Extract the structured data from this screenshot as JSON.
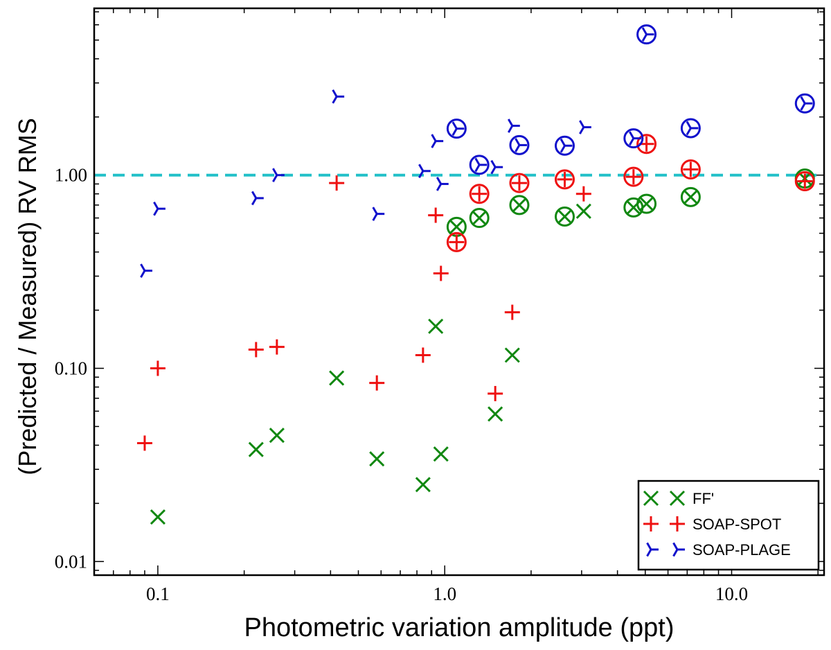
{
  "chart_data": {
    "type": "scatter",
    "title": "",
    "xlabel": "Photometric variation amplitude (ppt)",
    "ylabel": "(Predicted / Measured) RV RMS",
    "xscale": "log",
    "yscale": "log",
    "xlim": [
      0.06,
      21
    ],
    "ylim": [
      0.0085,
      7.3
    ],
    "xticks": [
      {
        "value": 0.1,
        "label": "0.1"
      },
      {
        "value": 1.0,
        "label": "1.0"
      },
      {
        "value": 10.0,
        "label": "10.0"
      }
    ],
    "yticks": [
      {
        "value": 0.01,
        "label": "0.01"
      },
      {
        "value": 0.1,
        "label": "0.10"
      },
      {
        "value": 1.0,
        "label": "1.00"
      }
    ],
    "reference_line": {
      "y": 1.0,
      "style": "dashed",
      "color": "#22c0c8"
    },
    "legend_position": "lower-right",
    "series": [
      {
        "name": "FF'",
        "marker": "x",
        "color": "#118811",
        "points": [
          {
            "x": 0.1,
            "y": 0.017,
            "circled": false
          },
          {
            "x": 0.22,
            "y": 0.038,
            "circled": false
          },
          {
            "x": 0.26,
            "y": 0.045,
            "circled": false
          },
          {
            "x": 0.42,
            "y": 0.089,
            "circled": false
          },
          {
            "x": 0.58,
            "y": 0.034,
            "circled": false
          },
          {
            "x": 0.84,
            "y": 0.025,
            "circled": false
          },
          {
            "x": 0.93,
            "y": 0.165,
            "circled": false
          },
          {
            "x": 0.97,
            "y": 0.036,
            "circled": false
          },
          {
            "x": 1.5,
            "y": 0.058,
            "circled": false
          },
          {
            "x": 1.72,
            "y": 0.117,
            "circled": false
          },
          {
            "x": 1.1,
            "y": 0.54,
            "circled": true
          },
          {
            "x": 1.32,
            "y": 0.6,
            "circled": true
          },
          {
            "x": 1.82,
            "y": 0.7,
            "circled": true
          },
          {
            "x": 2.62,
            "y": 0.61,
            "circled": true
          },
          {
            "x": 3.05,
            "y": 0.65,
            "circled": false
          },
          {
            "x": 4.55,
            "y": 0.68,
            "circled": true
          },
          {
            "x": 5.05,
            "y": 0.71,
            "circled": true
          },
          {
            "x": 7.2,
            "y": 0.77,
            "circled": true
          },
          {
            "x": 18.0,
            "y": 0.96,
            "circled": true
          }
        ]
      },
      {
        "name": "SOAP-SPOT",
        "marker": "+",
        "color": "#ee1111",
        "points": [
          {
            "x": 0.09,
            "y": 0.041,
            "circled": false
          },
          {
            "x": 0.1,
            "y": 0.1,
            "circled": false
          },
          {
            "x": 0.22,
            "y": 0.125,
            "circled": false
          },
          {
            "x": 0.26,
            "y": 0.129,
            "circled": false
          },
          {
            "x": 0.42,
            "y": 0.91,
            "circled": false
          },
          {
            "x": 0.58,
            "y": 0.084,
            "circled": false
          },
          {
            "x": 0.84,
            "y": 0.117,
            "circled": false
          },
          {
            "x": 0.93,
            "y": 0.62,
            "circled": false
          },
          {
            "x": 0.97,
            "y": 0.31,
            "circled": false
          },
          {
            "x": 1.5,
            "y": 0.074,
            "circled": false
          },
          {
            "x": 1.72,
            "y": 0.195,
            "circled": false
          },
          {
            "x": 1.1,
            "y": 0.45,
            "circled": true
          },
          {
            "x": 1.32,
            "y": 0.8,
            "circled": true
          },
          {
            "x": 1.82,
            "y": 0.91,
            "circled": true
          },
          {
            "x": 2.62,
            "y": 0.95,
            "circled": true
          },
          {
            "x": 3.05,
            "y": 0.8,
            "circled": false
          },
          {
            "x": 4.55,
            "y": 0.98,
            "circled": true
          },
          {
            "x": 5.05,
            "y": 1.45,
            "circled": true
          },
          {
            "x": 7.2,
            "y": 1.07,
            "circled": true
          },
          {
            "x": 18.0,
            "y": 0.93,
            "circled": true
          }
        ]
      },
      {
        "name": "SOAP-PLAGE",
        "marker": "tri_left",
        "color": "#1111cc",
        "points": [
          {
            "x": 0.09,
            "y": 0.32,
            "circled": false
          },
          {
            "x": 0.1,
            "y": 0.67,
            "circled": false
          },
          {
            "x": 0.22,
            "y": 0.76,
            "circled": false
          },
          {
            "x": 0.26,
            "y": 1.0,
            "circled": false
          },
          {
            "x": 0.42,
            "y": 2.55,
            "circled": false
          },
          {
            "x": 0.58,
            "y": 0.63,
            "circled": false
          },
          {
            "x": 0.84,
            "y": 1.05,
            "circled": false
          },
          {
            "x": 0.93,
            "y": 1.5,
            "circled": false
          },
          {
            "x": 0.97,
            "y": 0.9,
            "circled": false
          },
          {
            "x": 1.5,
            "y": 1.1,
            "circled": false
          },
          {
            "x": 1.72,
            "y": 1.8,
            "circled": false
          },
          {
            "x": 1.1,
            "y": 1.74,
            "circled": true
          },
          {
            "x": 1.32,
            "y": 1.13,
            "circled": true
          },
          {
            "x": 1.82,
            "y": 1.43,
            "circled": true
          },
          {
            "x": 2.62,
            "y": 1.42,
            "circled": true
          },
          {
            "x": 3.05,
            "y": 1.77,
            "circled": false
          },
          {
            "x": 4.55,
            "y": 1.55,
            "circled": true
          },
          {
            "x": 5.05,
            "y": 5.35,
            "circled": true
          },
          {
            "x": 7.2,
            "y": 1.75,
            "circled": true
          },
          {
            "x": 18.0,
            "y": 2.35,
            "circled": true
          }
        ]
      }
    ]
  }
}
